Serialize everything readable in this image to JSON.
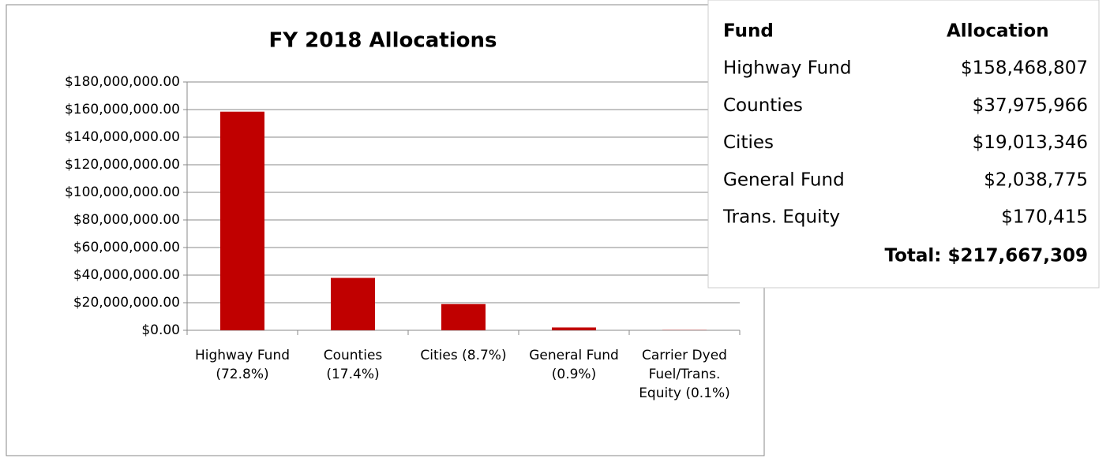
{
  "chart_data": {
    "type": "bar",
    "title": "FY 2018 Allocations",
    "categories": [
      "Highway Fund (72.8%)",
      "Counties (17.4%)",
      "Cities (8.7%)",
      "General Fund (0.9%)",
      "Carrier Dyed Fuel/Trans. Equity (0.1%)"
    ],
    "values": [
      158468807,
      37975966,
      19013346,
      2038775,
      170415
    ],
    "color": "#c00000",
    "ylim": [
      0,
      180000000
    ],
    "yticks": [
      {
        "value": 0,
        "label": "$0.00"
      },
      {
        "value": 20000000,
        "label": "$20,000,000.00"
      },
      {
        "value": 40000000,
        "label": "$40,000,000.00"
      },
      {
        "value": 60000000,
        "label": "$60,000,000.00"
      },
      {
        "value": 80000000,
        "label": "$80,000,000.00"
      },
      {
        "value": 100000000,
        "label": "$100,000,000.00"
      },
      {
        "value": 120000000,
        "label": "$120,000,000.00"
      },
      {
        "value": 140000000,
        "label": "$140,000,000.00"
      },
      {
        "value": 160000000,
        "label": "$160,000,000.00"
      },
      {
        "value": 180000000,
        "label": "$180,000,000.00"
      }
    ],
    "grid": true
  },
  "table": {
    "header": [
      "Fund",
      "Allocation"
    ],
    "rows": [
      [
        "Highway Fund",
        "$158,468,807"
      ],
      [
        "Counties",
        "$37,975,966"
      ],
      [
        "Cities",
        "$19,013,346"
      ],
      [
        "General Fund",
        "$2,038,775"
      ],
      [
        "Trans. Equity",
        "$170,415"
      ]
    ],
    "total": "Total: $217,667,309"
  }
}
